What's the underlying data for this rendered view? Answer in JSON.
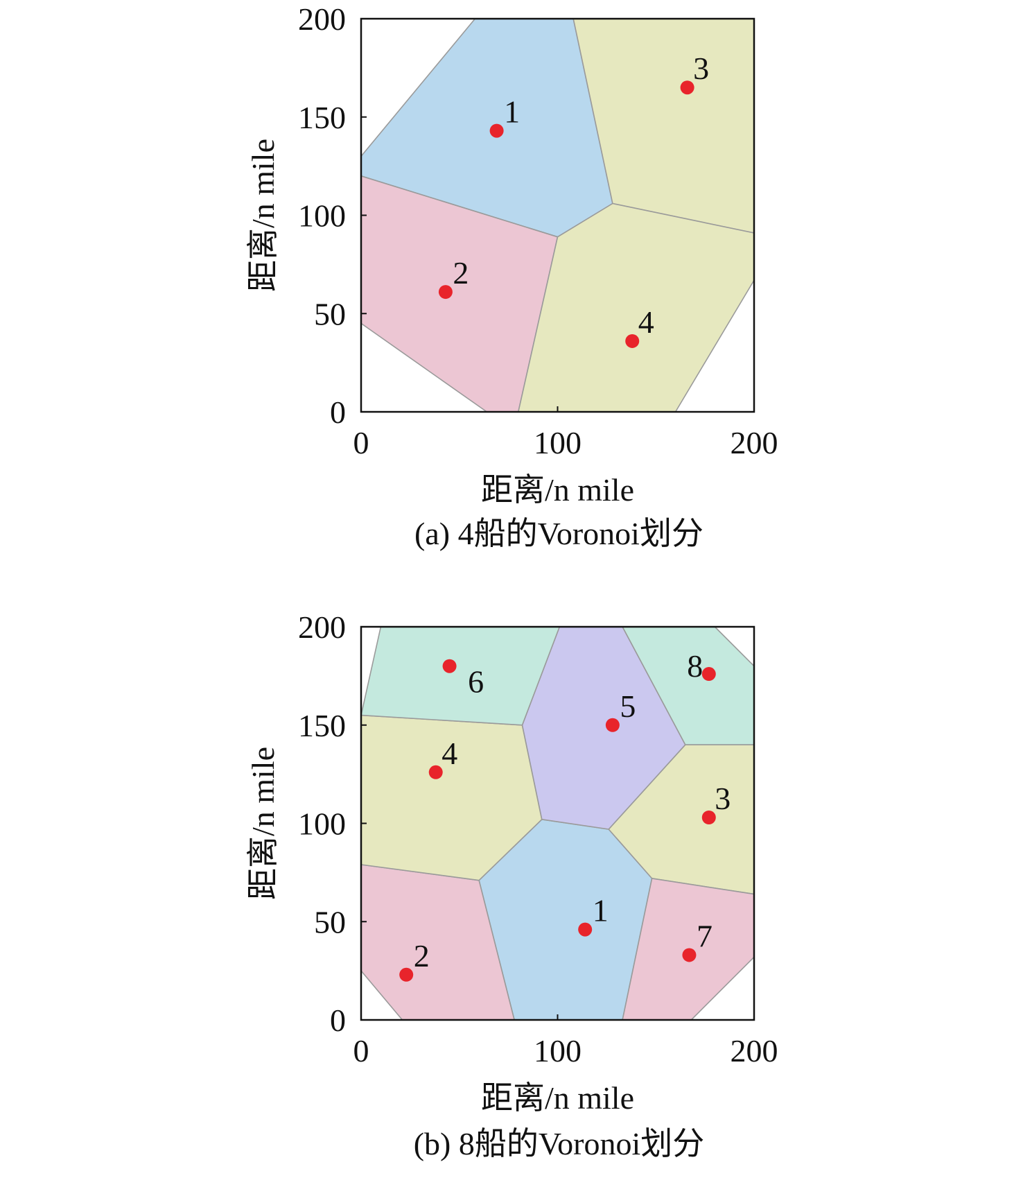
{
  "chart_data": [
    {
      "type": "scatter",
      "caption": "(a) 4船的Voronoi划分",
      "xlabel": "距离/n mile",
      "ylabel": "距离/n mile",
      "xlim": [
        0,
        200
      ],
      "ylim": [
        0,
        200
      ],
      "xticks": [
        "0",
        "100",
        "200"
      ],
      "yticks": [
        "0",
        "50",
        "100",
        "150",
        "200"
      ],
      "grid": false,
      "points": [
        {
          "label": "1",
          "x": 69,
          "y": 143
        },
        {
          "label": "2",
          "x": 43,
          "y": 61
        },
        {
          "label": "3",
          "x": 166,
          "y": 165
        },
        {
          "label": "4",
          "x": 138,
          "y": 36
        }
      ],
      "cells": [
        {
          "site": "1",
          "color": "#b8d8ee",
          "vertices": [
            [
              0,
              130
            ],
            [
              58,
              200
            ],
            [
              108,
              200
            ],
            [
              128,
              106
            ],
            [
              100,
              89
            ],
            [
              0,
              120
            ]
          ]
        },
        {
          "site": "2",
          "color": "#ecc6d3",
          "vertices": [
            [
              0,
              120
            ],
            [
              100,
              89
            ],
            [
              80,
              0
            ],
            [
              64,
              0
            ],
            [
              0,
              45
            ]
          ]
        },
        {
          "site": "3",
          "color": "#e6e8bf",
          "vertices": [
            [
              108,
              200
            ],
            [
              200,
              200
            ],
            [
              200,
              170
            ],
            [
              200,
              91
            ],
            [
              128,
              106
            ]
          ]
        },
        {
          "site": "4",
          "color": "#e6e8bf",
          "vertices": [
            [
              128,
              106
            ],
            [
              200,
              91
            ],
            [
              200,
              67
            ],
            [
              160,
              0
            ],
            [
              80,
              0
            ],
            [
              100,
              89
            ]
          ]
        }
      ]
    },
    {
      "type": "scatter",
      "caption": "(b) 8船的Voronoi划分",
      "xlabel": "距离/n mile",
      "ylabel": "距离/n mile",
      "xlim": [
        0,
        200
      ],
      "ylim": [
        0,
        200
      ],
      "xticks": [
        "0",
        "100",
        "200"
      ],
      "yticks": [
        "0",
        "50",
        "100",
        "150",
        "200"
      ],
      "grid": false,
      "points": [
        {
          "label": "1",
          "x": 114,
          "y": 46
        },
        {
          "label": "2",
          "x": 23,
          "y": 23
        },
        {
          "label": "3",
          "x": 177,
          "y": 103
        },
        {
          "label": "4",
          "x": 38,
          "y": 126
        },
        {
          "label": "5",
          "x": 128,
          "y": 150
        },
        {
          "label": "6",
          "x": 45,
          "y": 180
        },
        {
          "label": "7",
          "x": 167,
          "y": 33
        },
        {
          "label": "8",
          "x": 177,
          "y": 176
        }
      ],
      "cells": [
        {
          "site": "1",
          "color": "#b8d8ee",
          "vertices": [
            [
              60,
              71
            ],
            [
              92,
              102
            ],
            [
              126,
              97
            ],
            [
              148,
              72
            ],
            [
              133,
              0
            ],
            [
              78,
              0
            ]
          ]
        },
        {
          "site": "2",
          "color": "#ecc6d3",
          "vertices": [
            [
              0,
              79
            ],
            [
              60,
              71
            ],
            [
              78,
              0
            ],
            [
              21,
              0
            ],
            [
              0,
              25
            ]
          ]
        },
        {
          "site": "3",
          "color": "#e6e8bf",
          "vertices": [
            [
              126,
              97
            ],
            [
              165,
              140
            ],
            [
              200,
              140
            ],
            [
              200,
              64
            ],
            [
              148,
              72
            ]
          ]
        },
        {
          "site": "4",
          "color": "#e6e8bf",
          "vertices": [
            [
              0,
              155
            ],
            [
              82,
              150
            ],
            [
              92,
              102
            ],
            [
              60,
              71
            ],
            [
              0,
              79
            ]
          ]
        },
        {
          "site": "5",
          "color": "#cbc8ef",
          "vertices": [
            [
              82,
              150
            ],
            [
              101,
              200
            ],
            [
              133,
              200
            ],
            [
              165,
              140
            ],
            [
              126,
              97
            ],
            [
              92,
              102
            ]
          ]
        },
        {
          "site": "6",
          "color": "#c4e9de",
          "vertices": [
            [
              10,
              200
            ],
            [
              101,
              200
            ],
            [
              82,
              150
            ],
            [
              0,
              155
            ]
          ]
        },
        {
          "site": "7",
          "color": "#ecc6d3",
          "vertices": [
            [
              148,
              72
            ],
            [
              200,
              64
            ],
            [
              200,
              32
            ],
            [
              168,
              0
            ],
            [
              133,
              0
            ]
          ]
        },
        {
          "site": "8",
          "color": "#c4e9de",
          "vertices": [
            [
              133,
              200
            ],
            [
              180,
              200
            ],
            [
              200,
              180
            ],
            [
              200,
              140
            ],
            [
              165,
              140
            ]
          ]
        }
      ]
    }
  ],
  "colors": {
    "point": "#e8242b",
    "cell_edge": "#9a9a9a",
    "axis": "#111111"
  }
}
